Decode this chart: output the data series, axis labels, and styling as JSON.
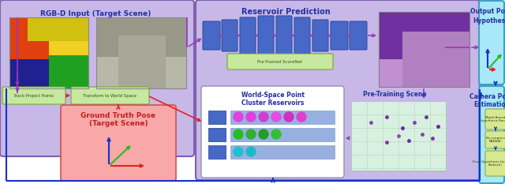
{
  "fig_width": 6.4,
  "fig_height": 2.33,
  "dpi": 100,
  "colors": {
    "purple_bg": "#c8b8e8",
    "purple_border": "#8060b0",
    "cyan_bg": "#a8e8f8",
    "cyan_border": "#40a0c0",
    "green_box": "#c8e8a0",
    "green_border": "#70a830",
    "pink_box": "#f8a8a8",
    "pink_border": "#d05050",
    "white_box": "#ffffff",
    "yellow_green_box": "#d8e890",
    "yellow_green_border": "#90a030",
    "nn_blue": "#4868c8",
    "nn_blue_dark": "#3050a0",
    "pre_train_scene_bg": "#d8f0e8",
    "purple_arrow": "#9838b8",
    "red_arrow": "#e82020",
    "blue_arrow": "#1830c8",
    "green_arrow": "#20c020"
  },
  "labels": {
    "rgb_input": "RGB-D Input (Target Scene)",
    "reservoir": "Reservoir Prediction",
    "pretrained_scorenet": "Pre-Trained ScoreNet",
    "pre_training_scene": "Pre-Training Scene",
    "wspc": "World-Space Point\nCluster Reservoirs",
    "bpp": "Back-Project Points",
    "tws": "Transform to World Space",
    "gt_pose": "Ground Truth Pose\n(Target Scene)",
    "output_pose1": "Output Pose",
    "output_pose2": "Hypothesis",
    "camera_pose": "Camera Pose\nEstimation",
    "mbhr": "Model-Based\nHypothesis Ranking",
    "preemptive": "Pre-emptive\nRANSAC",
    "phg": "Pose Hypothesis Generation\n(Kabsch)"
  }
}
